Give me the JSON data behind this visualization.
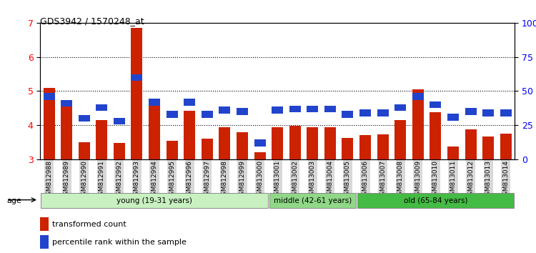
{
  "title": "GDS3942 / 1570248_at",
  "samples": [
    "GSM812988",
    "GSM812989",
    "GSM812990",
    "GSM812991",
    "GSM812992",
    "GSM812993",
    "GSM812994",
    "GSM812995",
    "GSM812996",
    "GSM812997",
    "GSM812998",
    "GSM812999",
    "GSM813000",
    "GSM813001",
    "GSM813002",
    "GSM813003",
    "GSM813004",
    "GSM813005",
    "GSM813006",
    "GSM813007",
    "GSM813008",
    "GSM813009",
    "GSM813010",
    "GSM813011",
    "GSM813012",
    "GSM813013",
    "GSM813014"
  ],
  "transformed_count": [
    5.1,
    4.55,
    3.5,
    4.15,
    3.48,
    6.85,
    4.7,
    3.55,
    4.42,
    3.6,
    3.95,
    3.8,
    3.22,
    3.95,
    3.98,
    3.95,
    3.95,
    3.63,
    3.72,
    3.73,
    4.15,
    5.05,
    4.38,
    3.38,
    3.88,
    3.68,
    3.75
  ],
  "percentile_rank": [
    46,
    41,
    30,
    38,
    28,
    60,
    42,
    33,
    42,
    33,
    36,
    35,
    12,
    36,
    37,
    37,
    37,
    33,
    34,
    34,
    38,
    46,
    40,
    31,
    35,
    34,
    34
  ],
  "groups": [
    {
      "label": "young (19-31 years)",
      "start": 0,
      "end": 13,
      "color": "#c8f0c0"
    },
    {
      "label": "middle (42-61 years)",
      "start": 13,
      "end": 18,
      "color": "#90d888"
    },
    {
      "label": "old (65-84 years)",
      "start": 18,
      "end": 27,
      "color": "#44bb44"
    }
  ],
  "bar_color_red": "#cc2200",
  "bar_color_blue": "#2244cc",
  "ylim_left": [
    3,
    7
  ],
  "yticks_left": [
    3,
    4,
    5,
    6,
    7
  ],
  "ylim_right": [
    0,
    100
  ],
  "yticks_right": [
    0,
    25,
    50,
    75,
    100
  ],
  "yticklabels_right": [
    "0",
    "25",
    "50",
    "75",
    "100%"
  ],
  "plot_bg": "#ffffff"
}
